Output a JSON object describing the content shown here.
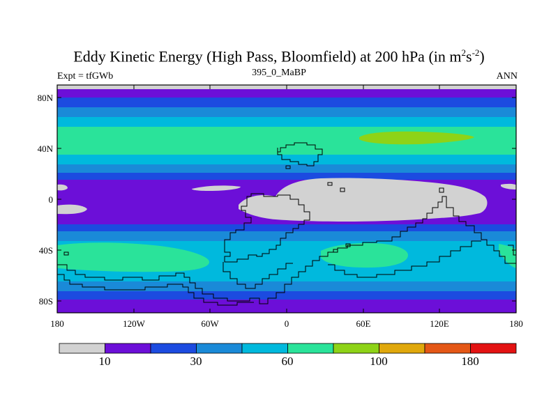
{
  "title_main": "Eddy Kinetic Energy (High Pass, Bloomfield) at 200 hPa (in m",
  "title_sup1": "2",
  "title_mid": "s",
  "title_sup2": "-2",
  "title_end": ")",
  "subtitle_left": "Expt = tfGWb",
  "subtitle_center": "395_0_MaBP",
  "subtitle_right": "ANN",
  "lat_labels": [
    "80N",
    "40N",
    "0",
    "40S",
    "80S"
  ],
  "lon_labels": [
    "180",
    "120W",
    "60W",
    "0",
    "60E",
    "120E",
    "180"
  ],
  "colorbar_labels": [
    "10",
    "30",
    "60",
    "100",
    "180"
  ],
  "colors": [
    "#d2d2d2",
    "#6c0fd8",
    "#1c4be0",
    "#1a8ad8",
    "#00b9dd",
    "#2ae39a",
    "#8ed317",
    "#e0a80c",
    "#e45716",
    "#e31212"
  ]
}
